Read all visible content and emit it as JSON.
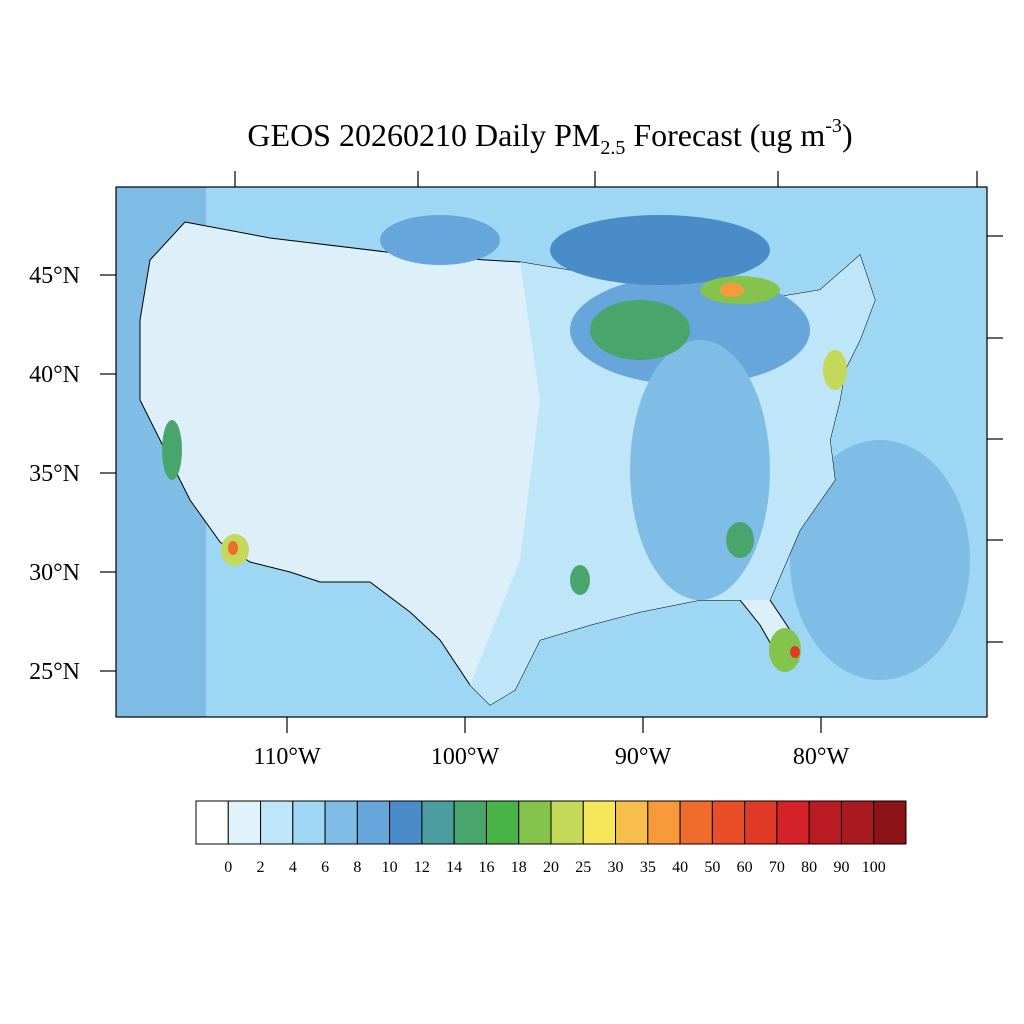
{
  "map": {
    "title": {
      "main": "GEOS 20260210 Daily PM",
      "subscript": "2.5",
      "middle": " Forecast (ug m",
      "superscript": "-3",
      "end": ")"
    },
    "lat_ticks": [
      {
        "value": 45,
        "label": "45°N"
      },
      {
        "value": 40,
        "label": "40°N"
      },
      {
        "value": 35,
        "label": "35°N"
      },
      {
        "value": 30,
        "label": "30°N"
      },
      {
        "value": 25,
        "label": "25°N"
      }
    ],
    "lon_ticks": [
      {
        "value": -110,
        "label": "110°W"
      },
      {
        "value": -100,
        "label": "100°W"
      },
      {
        "value": -90,
        "label": "90°W"
      },
      {
        "value": -80,
        "label": "80°W"
      }
    ],
    "colorbar": {
      "levels": [
        0,
        2,
        4,
        6,
        8,
        10,
        12,
        14,
        16,
        18,
        20,
        25,
        30,
        35,
        40,
        50,
        60,
        70,
        80,
        90,
        100
      ],
      "colors": [
        "#ffffff",
        "#e0f3fb",
        "#bfe6f8",
        "#9dd7f3",
        "#80bde6",
        "#66a6da",
        "#4a8cc8",
        "#4a9e9e",
        "#48a66c",
        "#48b448",
        "#84c44c",
        "#c4d85a",
        "#f6e65a",
        "#f8be4c",
        "#f89a3c",
        "#f06c2c",
        "#e84e28",
        "#e03a26",
        "#d42228",
        "#b81c22",
        "#a81a20",
        "#8c1418"
      ]
    }
  }
}
